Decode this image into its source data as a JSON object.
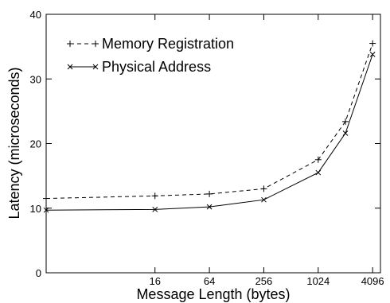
{
  "chart_data": {
    "type": "line",
    "title": "",
    "xlabel": "Message Length (bytes)",
    "ylabel": "Latency (microseconds)",
    "x_scale": "log2",
    "xlim": [
      1,
      5000
    ],
    "ylim": [
      0,
      40
    ],
    "x_ticks": [
      16,
      64,
      256,
      1024,
      4096
    ],
    "x_tick_labels": [
      "16",
      "64",
      "256",
      "1024",
      "4096"
    ],
    "y_ticks": [
      0,
      10,
      20,
      30,
      40
    ],
    "y_tick_labels": [
      "0",
      "10",
      "20",
      "30",
      "40"
    ],
    "grid": false,
    "legend_position": "top-left",
    "series": [
      {
        "name": "Memory Registration",
        "line_style": "dashed",
        "marker": "plus",
        "color": "#000000",
        "x": [
          1,
          16,
          64,
          256,
          1024,
          2048,
          4096
        ],
        "y": [
          11.5,
          11.9,
          12.2,
          13.0,
          17.5,
          23.4,
          35.5
        ]
      },
      {
        "name": "Physical Address",
        "line_style": "solid",
        "marker": "cross",
        "color": "#000000",
        "x": [
          1,
          16,
          64,
          256,
          1024,
          2048,
          4096
        ],
        "y": [
          9.7,
          9.8,
          10.2,
          11.3,
          15.5,
          21.6,
          33.8
        ]
      }
    ]
  }
}
